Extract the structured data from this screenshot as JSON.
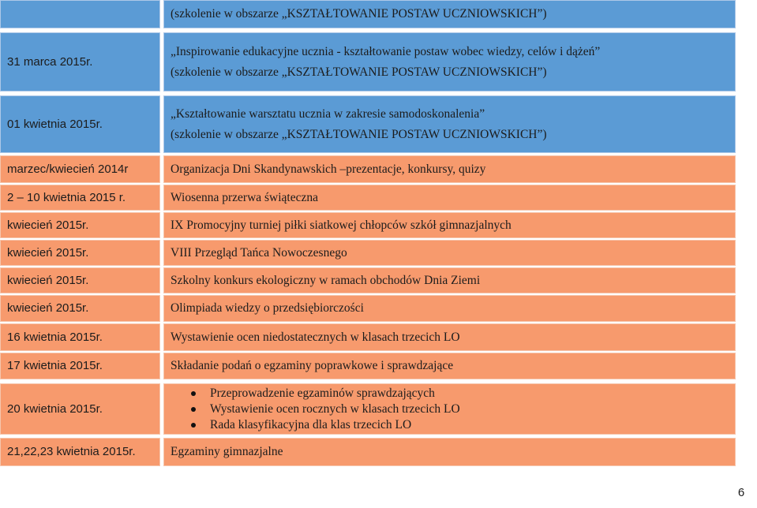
{
  "rows": [
    {
      "date": "",
      "lines": [
        "(szkolenie w obszarze „KSZTAŁTOWANIE POSTAW UCZNIOWSKICH”)"
      ]
    },
    {
      "date": "31 marca 2015r.",
      "lines": [
        "„Inspirowanie edukacyjne ucznia - kształtowanie postaw wobec wiedzy, celów i dążeń”",
        "(szkolenie w obszarze „KSZTAŁTOWANIE POSTAW UCZNIOWSKICH”)"
      ]
    },
    {
      "date": "01 kwietnia 2015r.",
      "lines": [
        "„Kształtowanie warsztatu ucznia w zakresie samodoskonalenia”",
        "(szkolenie w obszarze „KSZTAŁTOWANIE POSTAW UCZNIOWSKICH”)"
      ]
    },
    {
      "date": "marzec/kwiecień 2014r",
      "text": "Organizacja Dni Skandynawskich –prezentacje, konkursy, quizy"
    },
    {
      "date": "2 – 10 kwietnia 2015 r.",
      "text": "Wiosenna przerwa świąteczna"
    },
    {
      "date": "kwiecień 2015r.",
      "text": "IX Promocyjny turniej piłki siatkowej chłopców szkół gimnazjalnych"
    },
    {
      "date": "kwiecień 2015r.",
      "text": "VIII Przegląd Tańca Nowoczesnego"
    },
    {
      "date": "kwiecień 2015r.",
      "text": "Szkolny konkurs ekologiczny w ramach obchodów Dnia Ziemi"
    },
    {
      "date": "kwiecień 2015r.",
      "text": "Olimpiada wiedzy o przedsiębiorczości"
    },
    {
      "date": "16 kwietnia 2015r.",
      "text": "Wystawienie ocen niedostatecznych w klasach trzecich LO"
    },
    {
      "date": "17 kwietnia 2015r.",
      "text": "Składanie podań o egzaminy poprawkowe i sprawdzające"
    },
    {
      "date": "20 kwietnia 2015r.",
      "bullets": [
        "Przeprowadzenie egzaminów sprawdzających",
        "Wystawienie ocen rocznych w klasach trzecich LO",
        "Rada klasyfikacyjna dla klas trzecich LO"
      ]
    },
    {
      "date": "21,22,23 kwietnia 2015r.",
      "text": "Egzaminy gimnazjalne"
    }
  ],
  "page_number": "6",
  "colors": {
    "header_rows": "#5b9bd5",
    "event_rows": "#f79a6d"
  }
}
